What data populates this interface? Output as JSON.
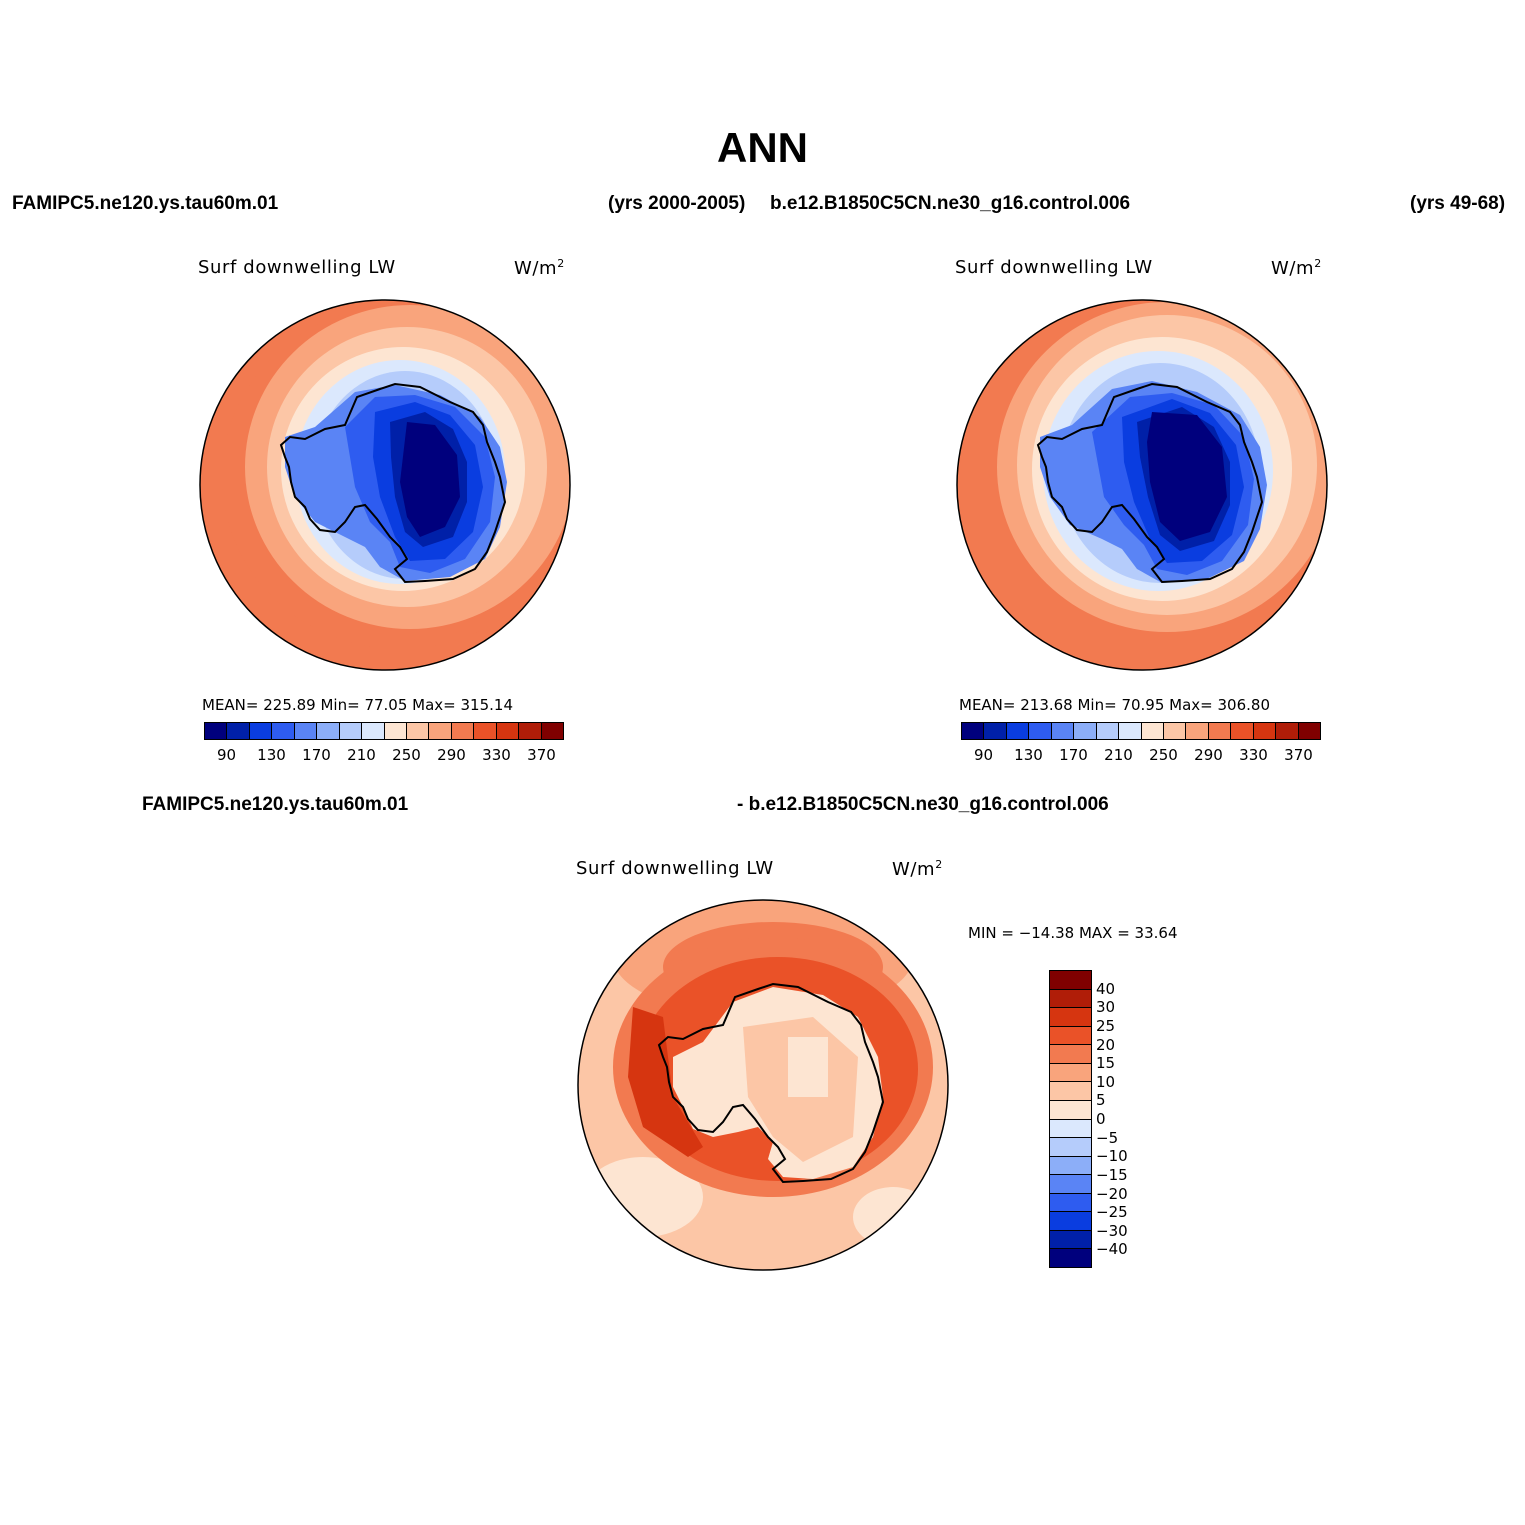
{
  "title": "ANN",
  "header": {
    "case1": "FAMIPC5.ne120.ys.tau60m.01",
    "case1_years": "(yrs 2000-2005)",
    "case2": "b.e12.B1850C5CN.ne30_g16.control.006",
    "case2_years": "(yrs 49-68)",
    "diff_left": "FAMIPC5.ne120.ys.tau60m.01",
    "diff_right": "- b.e12.B1850C5CN.ne30_g16.control.006"
  },
  "panels": [
    {
      "variable": "Surf downwelling LW",
      "units": "W/m",
      "units_sup": "2",
      "stats": "MEAN= 225.89   Min=   77.05   Max=  315.14"
    },
    {
      "variable": "Surf downwelling LW",
      "units": "W/m",
      "units_sup": "2",
      "stats": "MEAN= 213.68   Min=   70.95   Max=  306.80"
    },
    {
      "variable": "Surf downwelling LW",
      "units": "W/m",
      "units_sup": "2",
      "stats": "MIN = −14.38  MAX =   33.64"
    }
  ],
  "colorbar_abs": {
    "ticks": [
      "90",
      "130",
      "170",
      "210",
      "250",
      "290",
      "330",
      "370"
    ],
    "colors": [
      "#00007d",
      "#0020a8",
      "#0a3de0",
      "#2e5cf0",
      "#5a84f5",
      "#8caef8",
      "#b5ccfb",
      "#dbe8fd",
      "#fde5d2",
      "#fcc6a6",
      "#f9a47c",
      "#f27a50",
      "#ea5228",
      "#d63510",
      "#b01d08",
      "#800000"
    ]
  },
  "colorbar_diff": {
    "labels": [
      "40",
      "30",
      "25",
      "20",
      "15",
      "10",
      "5",
      "0",
      "−5",
      "−10",
      "−15",
      "−20",
      "−25",
      "−30",
      "−40"
    ],
    "colors": [
      "#800000",
      "#b01d08",
      "#d63510",
      "#ea5228",
      "#f27a50",
      "#f9a47c",
      "#fcc6a6",
      "#fde5d2",
      "#dbe8fd",
      "#b5ccfb",
      "#8caef8",
      "#5a84f5",
      "#2e5cf0",
      "#0a3de0",
      "#0020a8",
      "#00007d"
    ]
  },
  "chart_data": [
    {
      "type": "heatmap",
      "title": "Surf downwelling LW",
      "units": "W/m2",
      "projection": "polar stereographic, South Pole",
      "case": "FAMIPC5.ne120.ys.tau60m.01",
      "mean": 225.89,
      "min": 77.05,
      "max": 315.14,
      "contour_levels": [
        90,
        130,
        170,
        210,
        250,
        290,
        330,
        370
      ]
    },
    {
      "type": "heatmap",
      "title": "Surf downwelling LW",
      "units": "W/m2",
      "projection": "polar stereographic, South Pole",
      "case": "b.e12.B1850C5CN.ne30_g16.control.006",
      "mean": 213.68,
      "min": 70.95,
      "max": 306.8,
      "contour_levels": [
        90,
        130,
        170,
        210,
        250,
        290,
        330,
        370
      ]
    },
    {
      "type": "heatmap",
      "title": "Surf downwelling LW",
      "units": "W/m2",
      "projection": "polar stereographic, South Pole",
      "case": "FAMIPC5.ne120.ys.tau60m.01 - b.e12.B1850C5CN.ne30_g16.control.006",
      "min": -14.38,
      "max": 33.64,
      "contour_levels": [
        -40,
        -30,
        -25,
        -20,
        -15,
        -10,
        -5,
        0,
        5,
        10,
        15,
        20,
        25,
        30,
        40
      ]
    }
  ]
}
